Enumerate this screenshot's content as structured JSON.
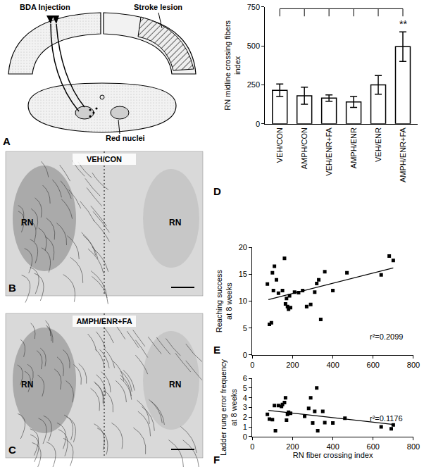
{
  "chart_data": [
    {
      "panel": "D",
      "type": "bar",
      "y_label": "RN midline crossing fibers\nindex",
      "categories": [
        "VEH/CON",
        "AMPH/CON",
        "VEH/ENR+FA",
        "AMPH/ENR",
        "VEH/ENR",
        "AMPH/ENR+FA"
      ],
      "values": [
        215,
        180,
        165,
        140,
        250,
        495
      ],
      "errors": [
        40,
        55,
        20,
        35,
        60,
        95
      ],
      "color": "#ffffff",
      "ylim": [
        0,
        750
      ],
      "yticks": [
        0,
        250,
        500,
        750
      ],
      "annotations": [
        {
          "text": "**",
          "category": "AMPH/ENR+FA"
        }
      ],
      "grid": false
    },
    {
      "panel": "E",
      "type": "scatter",
      "y_label": "Reaching success\nat 8 weeks",
      "x": [
        75,
        85,
        95,
        100,
        105,
        110,
        120,
        130,
        150,
        160,
        165,
        170,
        175,
        180,
        185,
        190,
        210,
        230,
        250,
        270,
        290,
        310,
        320,
        330,
        340,
        360,
        400,
        470,
        640,
        680,
        700
      ],
      "values": [
        13.2,
        5.7,
        6,
        15.3,
        12,
        16.5,
        14,
        11.5,
        12,
        18,
        9.5,
        10.5,
        9,
        8.5,
        11,
        8.8,
        11.7,
        11.6,
        12,
        9,
        9.4,
        11.7,
        13.3,
        14,
        6.6,
        15.5,
        12,
        15.3,
        14.9,
        18.4,
        17.6
      ],
      "trend_line": {
        "x": [
          80,
          700
        ],
        "values": [
          10.3,
          16.2
        ]
      },
      "annotation": "r²=0.2099",
      "color": "#000000",
      "marker": "square",
      "xlim": [
        0,
        800
      ],
      "xticks": [
        0,
        200,
        400,
        600,
        800
      ],
      "ylim": [
        0,
        20
      ],
      "yticks": [
        0,
        5,
        10,
        15,
        20
      ],
      "grid": false
    },
    {
      "panel": "F",
      "type": "scatter",
      "x_label": "RN fiber crossing index",
      "y_label": "Ladder rung error frequency\nat 8 weeks",
      "x": [
        75,
        85,
        100,
        110,
        115,
        130,
        145,
        150,
        160,
        165,
        170,
        175,
        180,
        190,
        260,
        280,
        290,
        300,
        310,
        320,
        325,
        350,
        360,
        400,
        460,
        640,
        690,
        700
      ],
      "values": [
        2.3,
        1.8,
        1.75,
        3.2,
        0.6,
        3.2,
        3.1,
        3.3,
        3.5,
        4,
        1.7,
        2.3,
        2.5,
        2.4,
        2.1,
        2.9,
        4,
        1.4,
        2.6,
        5,
        0.6,
        2.6,
        1.45,
        1.4,
        1.9,
        1,
        0.8,
        1.2
      ],
      "trend_line": {
        "x": [
          80,
          700
        ],
        "values": [
          2.7,
          1.25
        ]
      },
      "annotation": "r²=0.1176",
      "color": "#000000",
      "marker": "square",
      "xlim": [
        0,
        800
      ],
      "xticks": [
        0,
        200,
        400,
        600,
        800
      ],
      "ylim": [
        0,
        6
      ],
      "yticks": [
        0,
        1,
        2,
        3,
        4,
        5,
        6
      ],
      "grid": false
    }
  ],
  "diagram": {
    "panel": "A",
    "injection_label": "BDA Injection",
    "lesion_label": "Stroke lesion",
    "nuclei_label": "Red nuclei"
  },
  "micrographs": [
    {
      "panel": "B",
      "title": "VEH/CON",
      "left_label": "RN",
      "right_label": "RN"
    },
    {
      "panel": "C",
      "title": "AMPH/ENR+FA",
      "left_label": "RN",
      "right_label": "RN"
    }
  ]
}
